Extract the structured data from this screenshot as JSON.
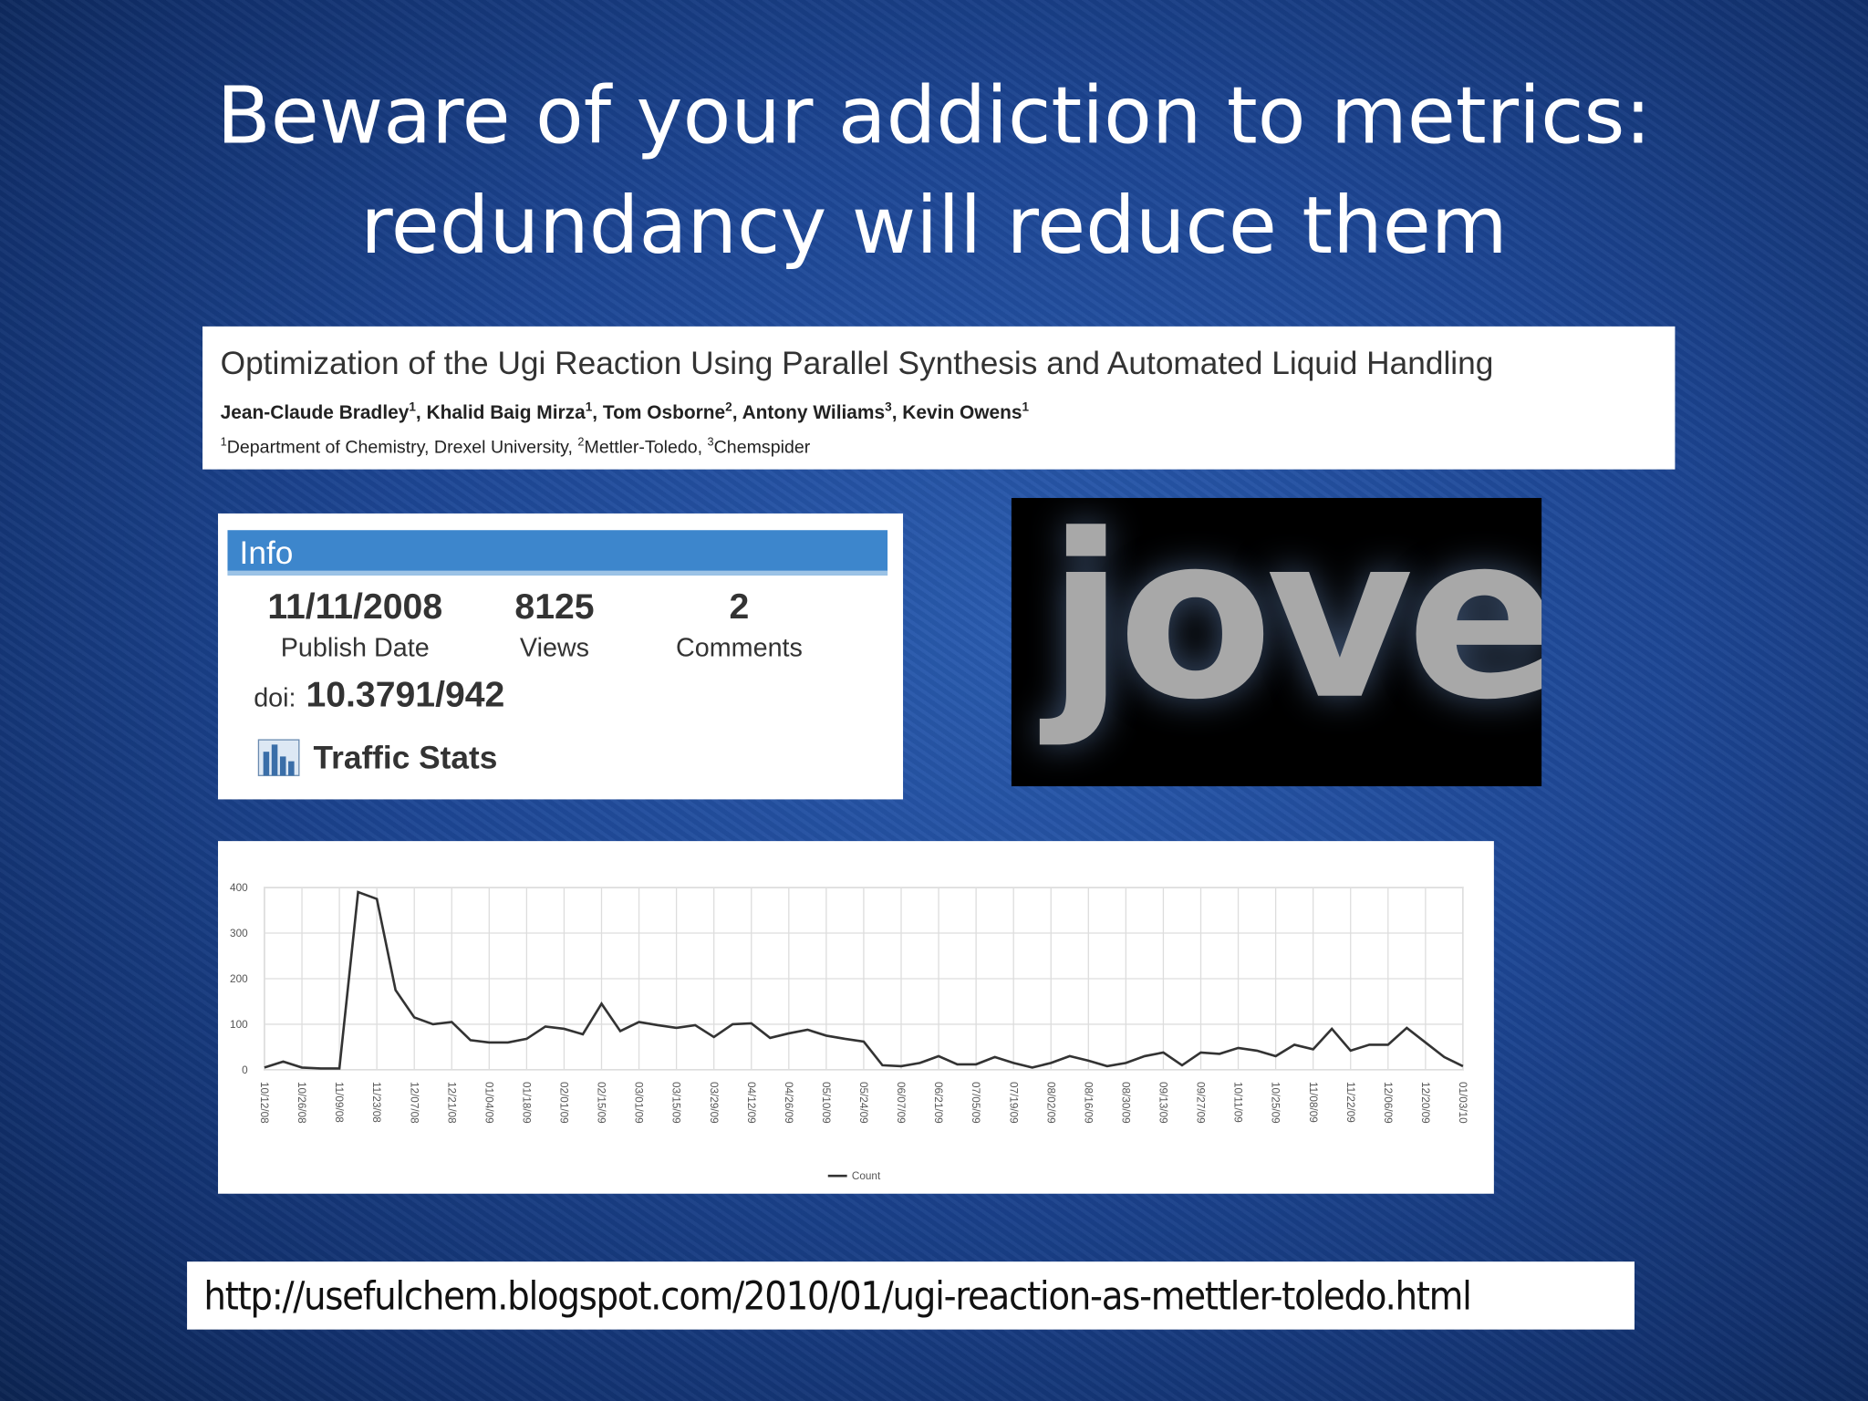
{
  "title": {
    "line1": "Beware of your addiction to metrics:",
    "line2": "redundancy will reduce them"
  },
  "paper": {
    "title": "Optimization of the Ugi Reaction Using Parallel Synthesis and Automated Liquid Handling",
    "authors": [
      {
        "text": "Jean-Claude Bradley",
        "sup": "1"
      },
      {
        "text": ", Khalid Baig Mirza",
        "sup": "1"
      },
      {
        "text": ", Tom Osborne",
        "sup": "2"
      },
      {
        "text": ", Antony Wiliams",
        "sup": "3"
      },
      {
        "text": ", Kevin Owens",
        "sup": "1"
      }
    ],
    "affiliations": [
      {
        "sup": "1",
        "text": "Department of Chemistry, Drexel University, "
      },
      {
        "sup": "2",
        "text": "Mettler-Toledo, "
      },
      {
        "sup": "3",
        "text": "Chemspider"
      }
    ]
  },
  "info": {
    "header": "Info",
    "publish_date": "11/11/2008",
    "publish_date_label": "Publish Date",
    "views": 8125,
    "views_label": "Views",
    "comments": 2,
    "comments_label": "Comments",
    "doi_label": "doi:",
    "doi": "10.3791/942",
    "traffic_stats": "Traffic Stats"
  },
  "logo": {
    "text": "jove"
  },
  "chart_data": {
    "type": "line",
    "categories": [
      "10/12/08",
      null,
      "10/26/08",
      null,
      "11/09/08",
      null,
      "11/23/08",
      null,
      "12/07/08",
      null,
      "12/21/08",
      null,
      "01/04/09",
      null,
      "01/18/09",
      null,
      "02/01/09",
      null,
      "02/15/09",
      null,
      "03/01/09",
      null,
      "03/15/09",
      null,
      "03/29/09",
      null,
      "04/12/09",
      null,
      "04/26/09",
      null,
      "05/10/09",
      null,
      "05/24/09",
      null,
      "06/07/09",
      null,
      "06/21/09",
      null,
      "07/05/09",
      null,
      "07/19/09",
      null,
      "08/02/09",
      null,
      "08/16/09",
      null,
      "08/30/09",
      null,
      "09/13/09",
      null,
      "09/27/09",
      null,
      "10/11/09",
      null,
      "10/25/09",
      null,
      "11/08/09",
      null,
      "11/22/09",
      null,
      "12/06/09",
      null,
      "12/20/09",
      null,
      "01/03/10"
    ],
    "series": [
      {
        "name": "Count",
        "color": "#333333",
        "values": [
          5,
          18,
          5,
          3,
          3,
          390,
          375,
          175,
          115,
          100,
          105,
          65,
          60,
          60,
          68,
          95,
          90,
          78,
          145,
          85,
          105,
          98,
          92,
          98,
          72,
          100,
          102,
          70,
          80,
          88,
          75,
          68,
          62,
          10,
          8,
          15,
          30,
          12,
          12,
          28,
          15,
          5,
          15,
          30,
          20,
          8,
          15,
          30,
          38,
          10,
          38,
          35,
          48,
          42,
          30,
          55,
          45,
          90,
          42,
          55,
          55,
          92,
          60,
          28,
          8
        ]
      }
    ],
    "ylim": [
      0,
      400
    ],
    "yticks": [
      0,
      100,
      200,
      300,
      400
    ],
    "grid": true
  },
  "url": "http://usefulchem.blogspot.com/2010/01/ugi-reaction-as-mettler-toledo.html"
}
